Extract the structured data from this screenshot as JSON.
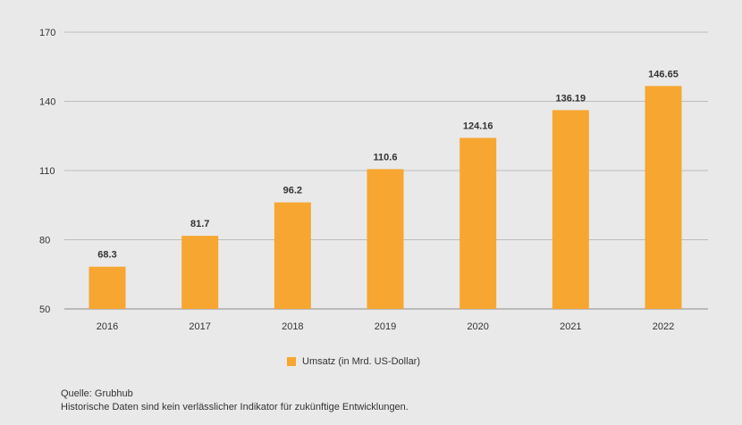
{
  "chart_data": {
    "type": "bar",
    "categories": [
      "2016",
      "2017",
      "2018",
      "2019",
      "2020",
      "2021",
      "2022"
    ],
    "series": [
      {
        "name": "Umsatz (in Mrd. US-Dollar)",
        "values": [
          68.3,
          81.7,
          96.2,
          110.6,
          124.16,
          136.19,
          146.65
        ],
        "labels": [
          "68.3",
          "81.7",
          "96.2",
          "110.6",
          "124.16",
          "136.19",
          "146.65"
        ],
        "color": "#f7a632"
      }
    ],
    "yticks": [
      50,
      80,
      110,
      140,
      170
    ],
    "ylim": [
      50,
      170
    ],
    "grid": true,
    "legend_position": "bottom"
  },
  "footer": {
    "source": "Quelle: Grubhub",
    "disclaimer": "Historische Daten sind kein verlässlicher Indikator für zukünftige Entwicklungen."
  },
  "colors": {
    "background": "#e9e9e9",
    "bar": "#f7a632",
    "grid": "#bdbdbd",
    "axis": "#8a8a8a",
    "text": "#333333"
  }
}
